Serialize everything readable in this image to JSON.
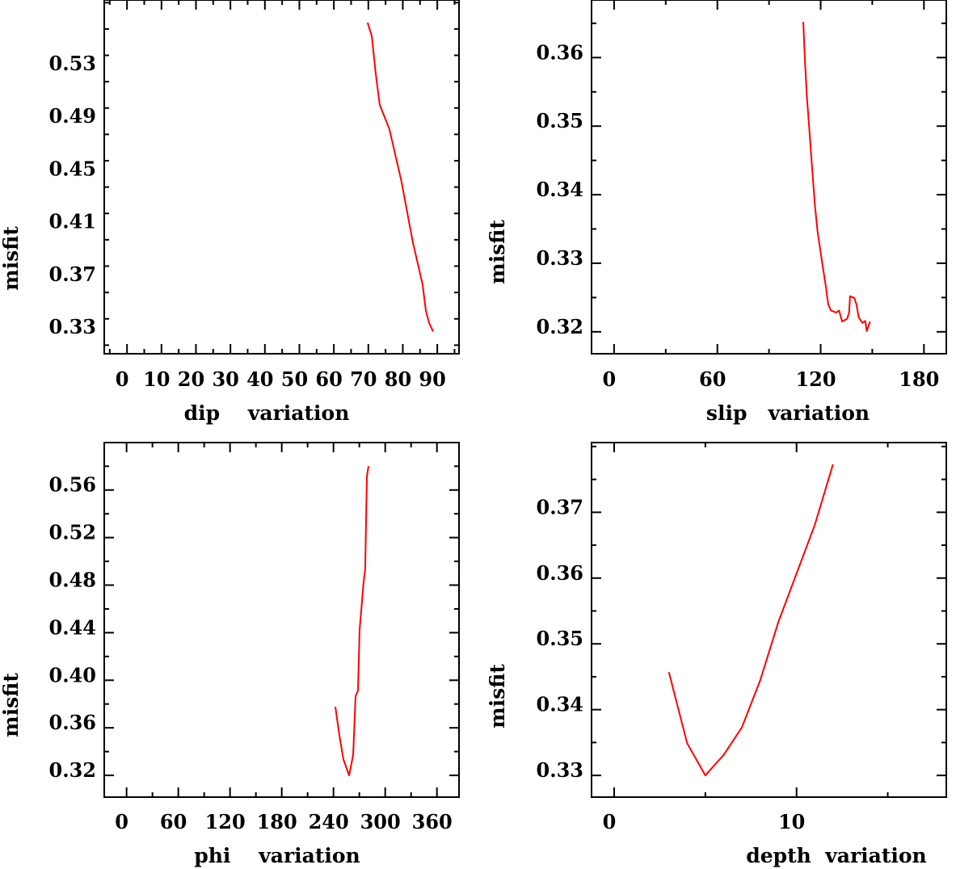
{
  "chart_data": [
    {
      "type": "line",
      "xlabel": "dip    variation",
      "ylabel": "misfit",
      "xlim": [
        -6.6,
        96.3
      ],
      "ylim": [
        0.3135,
        0.582
      ],
      "xticks": [
        0,
        10,
        20,
        30,
        40,
        50,
        60,
        70,
        80,
        90
      ],
      "xtick_labels": [
        "0",
        "10",
        "20",
        "30",
        "40",
        "50",
        "60",
        "70",
        "80",
        "90"
      ],
      "xminor_step": 5,
      "yticks": [
        0.33,
        0.37,
        0.41,
        0.45,
        0.49,
        0.53
      ],
      "ytick_labels": [
        "0.33",
        "0.37",
        "0.41",
        "0.45",
        "0.49",
        "0.53"
      ],
      "yminor_step": 0.02,
      "grid": false,
      "line_color": "#ff0000",
      "series": [
        {
          "name": "misfit",
          "x": [
            69.8,
            71.0,
            72.1,
            73.3,
            76.1,
            79.6,
            82.9,
            85.7,
            86.7,
            87.6,
            88.8
          ],
          "y": [
            0.5649,
            0.5545,
            0.5269,
            0.5024,
            0.4841,
            0.4442,
            0.3983,
            0.3665,
            0.3462,
            0.3371,
            0.3303
          ]
        }
      ]
    },
    {
      "type": "line",
      "xlabel": "slip   variation",
      "ylabel": "misfit",
      "xlim": [
        -13.1,
        193
      ],
      "ylim": [
        0.3168,
        0.3684
      ],
      "xticks": [
        0,
        60,
        120,
        180
      ],
      "xtick_labels": [
        "0",
        "60",
        "120",
        "180"
      ],
      "xminor_step": 30,
      "yticks": [
        0.32,
        0.33,
        0.34,
        0.35,
        0.36
      ],
      "ytick_labels": [
        "0.32",
        "0.33",
        "0.34",
        "0.35",
        "0.36"
      ],
      "yminor_step": 0.005,
      "grid": false,
      "line_color": "#ff0000",
      "series": [
        {
          "name": "misfit",
          "x": [
            109.9,
            110.8,
            111.9,
            113.5,
            115.0,
            116.6,
            118.2,
            120.5,
            122.9,
            124.4,
            126.0,
            129.1,
            130.7,
            132.5,
            135.4,
            136.5,
            137.1,
            139.6,
            140.8,
            142.1,
            144.3,
            145.9,
            146.8,
            148.7
          ],
          "y": [
            0.3652,
            0.3601,
            0.3546,
            0.3492,
            0.344,
            0.3386,
            0.3346,
            0.3307,
            0.3268,
            0.324,
            0.3231,
            0.3228,
            0.3231,
            0.3215,
            0.3219,
            0.3228,
            0.3252,
            0.3249,
            0.324,
            0.3221,
            0.3213,
            0.3216,
            0.3201,
            0.3215
          ]
        }
      ]
    },
    {
      "type": "line",
      "xlabel": "phi    variation",
      "ylabel": "misfit",
      "xlim": [
        -25.9,
        385.6
      ],
      "ylim": [
        0.3017,
        0.5999
      ],
      "xticks": [
        0,
        60,
        120,
        180,
        240,
        300,
        360
      ],
      "xtick_labels": [
        "0",
        "60",
        "120",
        "180",
        "240",
        "300",
        "360"
      ],
      "xminor_step": 30,
      "yticks": [
        0.32,
        0.36,
        0.4,
        0.44,
        0.48,
        0.52,
        0.56
      ],
      "ytick_labels": [
        "0.32",
        "0.36",
        "0.40",
        "0.44",
        "0.48",
        "0.52",
        "0.56"
      ],
      "yminor_step": 0.02,
      "grid": false,
      "line_color": "#ff0000",
      "series": [
        {
          "name": "misfit",
          "x": [
            242.2,
            246.8,
            251.5,
            258.1,
            262.8,
            265.6,
            268.4,
            270.3,
            275.0,
            276.8,
            278.7,
            280.6
          ],
          "y": [
            0.3777,
            0.354,
            0.3336,
            0.32,
            0.337,
            0.3866,
            0.3913,
            0.4422,
            0.483,
            0.4932,
            0.5713,
            0.5801
          ]
        }
      ]
    },
    {
      "type": "line",
      "xlabel": "depth  variation",
      "ylabel": "misfit",
      "xlim": [
        -1.24,
        18.21
      ],
      "ylim": [
        0.3267,
        0.3806
      ],
      "xticks": [
        0,
        10
      ],
      "xtick_labels": [
        "0",
        "10"
      ],
      "xminor_step": 5,
      "yticks": [
        0.33,
        0.34,
        0.35,
        0.36,
        0.37
      ],
      "ytick_labels": [
        "0.33",
        "0.34",
        "0.35",
        "0.36",
        "0.37"
      ],
      "yminor_step": 0.005,
      "grid": false,
      "line_color": "#ff0000",
      "series": [
        {
          "name": "misfit",
          "x": [
            3,
            4,
            5,
            6,
            7,
            8,
            9,
            10,
            11,
            12
          ],
          "y": [
            0.3457,
            0.3349,
            0.33,
            0.3331,
            0.3373,
            0.3444,
            0.3533,
            0.3607,
            0.3681,
            0.3773
          ]
        }
      ]
    }
  ]
}
